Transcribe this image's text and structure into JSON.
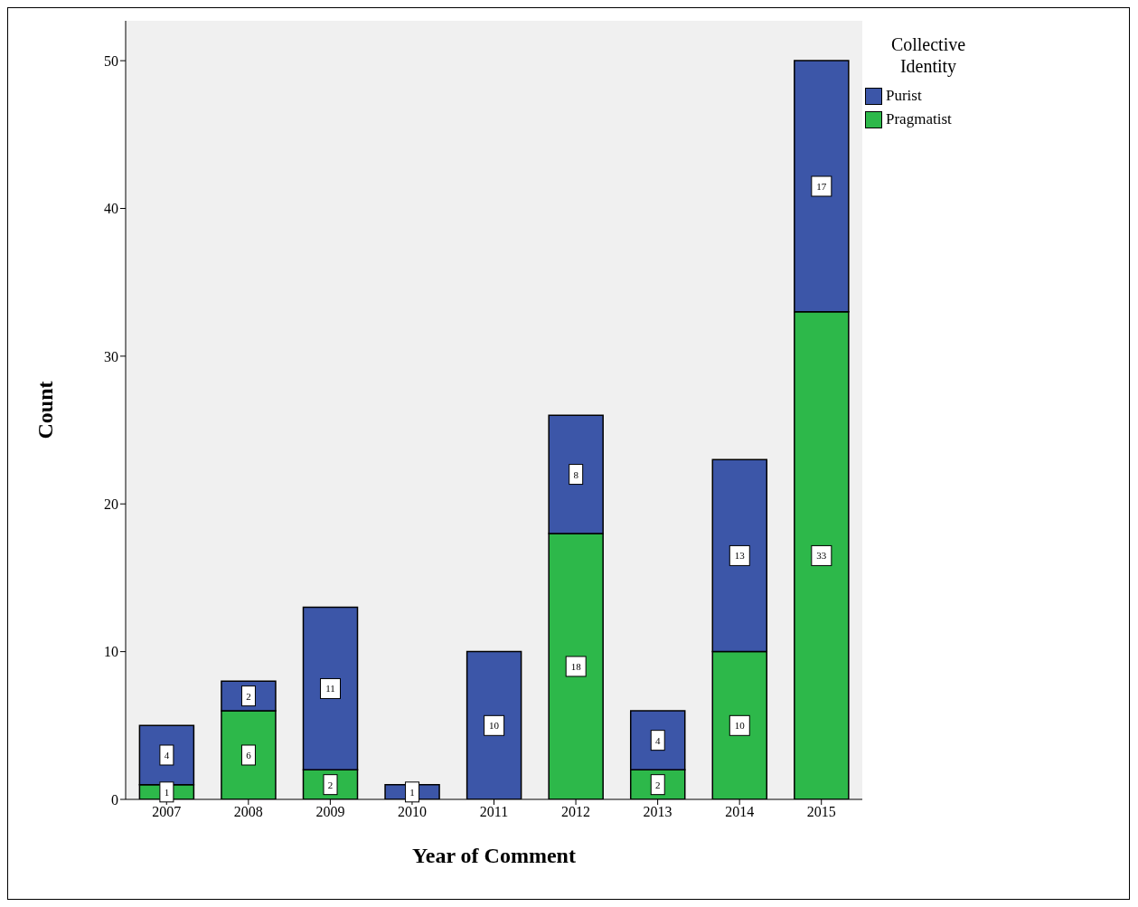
{
  "chart_data": {
    "type": "bar",
    "stacked": true,
    "xlabel": "Year of Comment",
    "ylabel": "Count",
    "legend_title": "Collective Identity",
    "legend": "top right",
    "categories": [
      "2007",
      "2008",
      "2009",
      "2010",
      "2011",
      "2012",
      "2013",
      "2014",
      "2015"
    ],
    "series": [
      {
        "name": "Pragmatist",
        "color": "#2db84a",
        "values": [
          1,
          6,
          2,
          0,
          0,
          18,
          2,
          10,
          33
        ],
        "value_labels": [
          "1",
          "6",
          "2",
          null,
          null,
          "18",
          "2",
          "10",
          "33"
        ]
      },
      {
        "name": "Purist",
        "color": "#3c56a8",
        "values": [
          4,
          2,
          11,
          1,
          10,
          8,
          4,
          13,
          17
        ],
        "value_labels": [
          "4",
          "2",
          "11",
          "1",
          "10",
          "8",
          "4",
          "13",
          "17"
        ]
      }
    ],
    "ylim": [
      0,
      52.7
    ],
    "yticks": [
      0,
      10,
      20,
      30,
      40,
      50
    ]
  }
}
